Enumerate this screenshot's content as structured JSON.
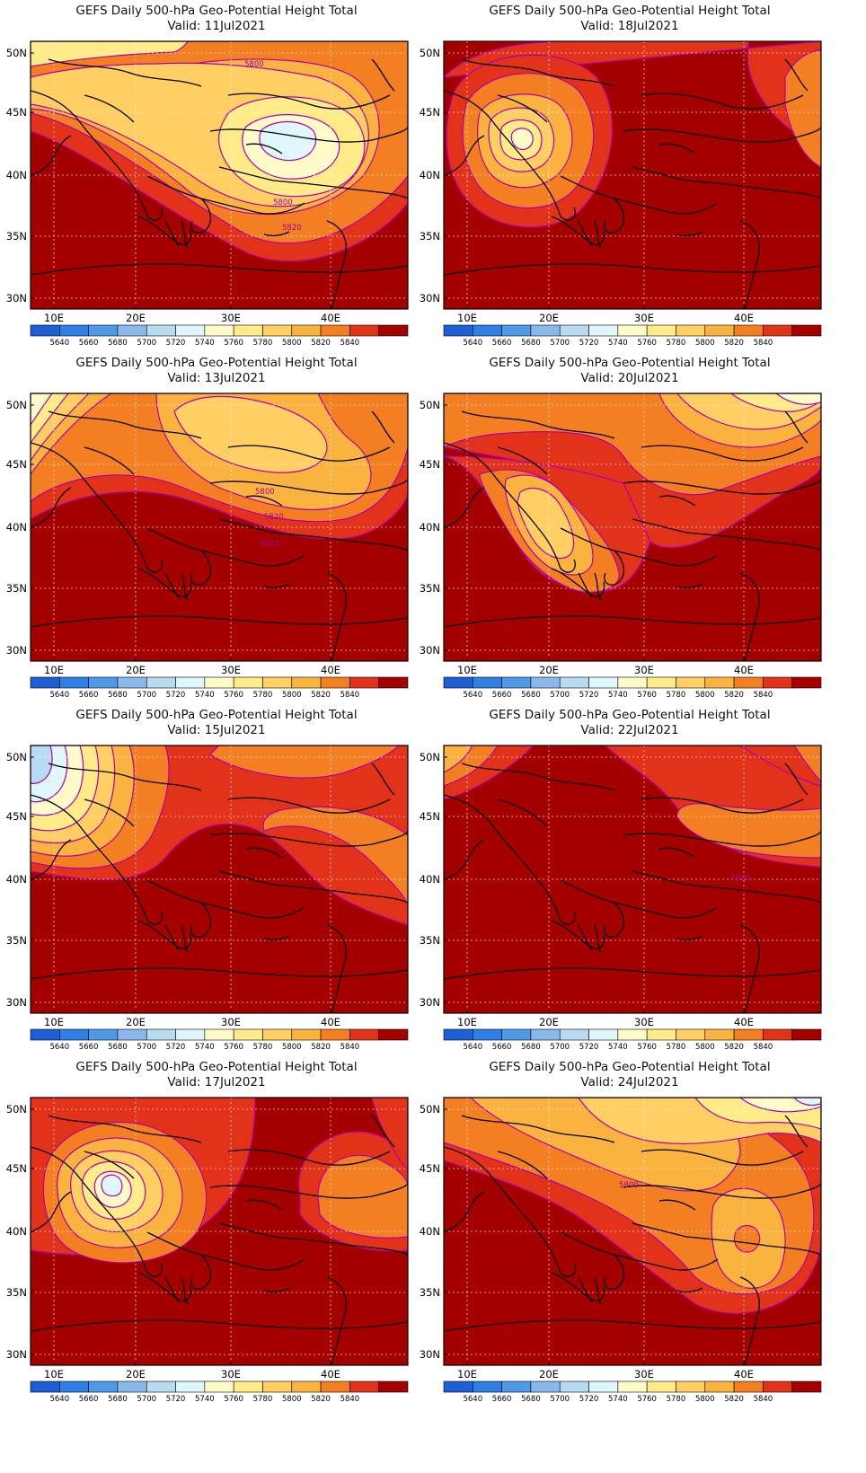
{
  "colorbar": {
    "levels": [
      "5640",
      "5660",
      "5680",
      "5700",
      "5720",
      "5740",
      "5760",
      "5780",
      "5800",
      "5820",
      "5840"
    ],
    "colors": [
      "#1f5fd6",
      "#2f7fe6",
      "#4d9be8",
      "#8ab8ea",
      "#b7dcf2",
      "#dff6fb",
      "#fffbc8",
      "#ffeb87",
      "#ffcf63",
      "#fbb340",
      "#f47f22",
      "#e3321a",
      "#a50000"
    ]
  },
  "axes": {
    "lon_labels": [
      "10E",
      "20E",
      "30E",
      "40E"
    ],
    "lat_labels": [
      "50N",
      "45N",
      "40N",
      "35N",
      "30N"
    ]
  },
  "panels": [
    {
      "title": "GEFS Daily 500-hPa Geo-Potential Height Total",
      "valid": "Valid: 11Jul2021",
      "contour_labels": [
        "5800",
        "5800",
        "5820"
      ]
    },
    {
      "title": "GEFS Daily 500-hPa Geo-Potential Height Total",
      "valid": "Valid: 18Jul2021",
      "contour_labels": []
    },
    {
      "title": "GEFS Daily 500-hPa Geo-Potential Height Total",
      "valid": "Valid: 13Jul2021",
      "contour_labels": [
        "5800",
        "5820",
        "5840"
      ]
    },
    {
      "title": "GEFS Daily 500-hPa Geo-Potential Height Total",
      "valid": "Valid: 20Jul2021",
      "contour_labels": []
    },
    {
      "title": "GEFS Daily 500-hPa Geo-Potential Height Total",
      "valid": "Valid: 15Jul2021",
      "contour_labels": []
    },
    {
      "title": "GEFS Daily 500-hPa Geo-Potential Height Total",
      "valid": "Valid: 22Jul2021",
      "contour_labels": [
        "5840"
      ]
    },
    {
      "title": "GEFS Daily 500-hPa Geo-Potential Height Total",
      "valid": "Valid: 17Jul2021",
      "contour_labels": []
    },
    {
      "title": "GEFS Daily 500-hPa Geo-Potential Height Total",
      "valid": "Valid: 24Jul2021",
      "contour_labels": [
        "5800"
      ]
    }
  ]
}
